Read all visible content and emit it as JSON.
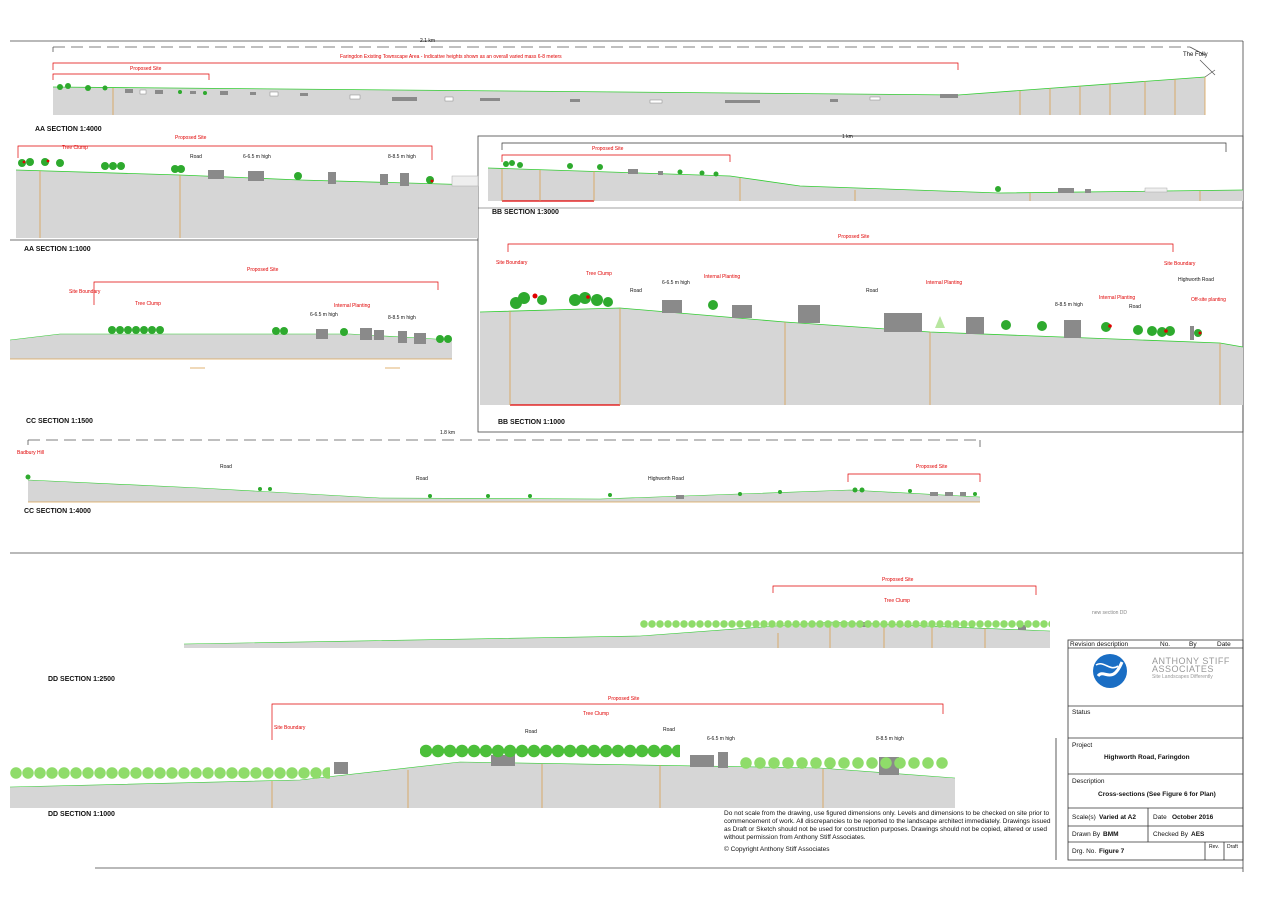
{
  "sections": {
    "aa4000": {
      "title": "AA SECTION 1:4000",
      "scale_distance": "2.1 km",
      "townscape_note": "Faringdon Existing Townscape Area - Indicative heights shown as an overall varied mass 6-8 meters",
      "proposed_site": "Proposed Site",
      "folly": "The Folly"
    },
    "aa1000": {
      "title": "AA SECTION 1:1000",
      "proposed_site": "Proposed Site",
      "tree_clump": "Tree Clump",
      "road": "Road",
      "height1": "6-6.5 m high",
      "height2": "8-8.5 m high"
    },
    "bb3000": {
      "title": "BB SECTION 1:3000",
      "scale_distance": "1 km",
      "proposed_site": "Proposed Site"
    },
    "bb1000": {
      "title": "BB SECTION 1:1000",
      "proposed_site": "Proposed Site",
      "site_boundary_left": "Site Boundary",
      "tree_clump": "Tree Clump",
      "road1": "Road",
      "height1": "6-6.5 m high",
      "internal_planting1": "Internal Planting",
      "road2": "Road",
      "internal_planting2": "Internal Planting",
      "height2": "8-8.5 m high",
      "internal_planting3": "Internal Planting",
      "road3": "Road",
      "site_boundary_right": "Site Boundary",
      "highworth_road": "Highworth Road",
      "offsite_planting": "Off-site planting"
    },
    "cc1500": {
      "title": "CC SECTION 1:1500",
      "proposed_site": "Proposed Site",
      "site_boundary": "Site Boundary",
      "tree_clump": "Tree Clump",
      "height1": "6-6.5 m high",
      "internal_planting": "Internal Planting",
      "height2": "8-8.5 m high"
    },
    "cc4000": {
      "title": "CC SECTION 1:4000",
      "scale_distance": "1.8 km",
      "badbury_hill": "Badbury Hill",
      "road1": "Road",
      "road2": "Road",
      "highworth_road": "Highworth Road",
      "proposed_site": "Proposed Site"
    },
    "dd2500": {
      "title": "DD SECTION 1:2500",
      "proposed_site": "Proposed Site",
      "tree_clump": "Tree Clump",
      "new_section": "new section DD"
    },
    "dd1000": {
      "title": "DD SECTION 1:1000",
      "proposed_site": "Proposed Site",
      "tree_clump": "Tree Clump",
      "site_boundary": "Site Boundary",
      "road1": "Road",
      "road2": "Road",
      "height1": "6-6.5 m high",
      "height2": "8-8.5 m high"
    }
  },
  "notes": {
    "disclaimer": "Do not scale from the drawing, use figured dimensions only. Levels and dimensions to be checked on site prior to commencement of work. All discrepancies to be reported to the landscape architect immediately. Drawings issued as Draft or Sketch should not be used for construction purposes. Drawings should not be copied, altered or used without permission from Anthony Stiff Associates.",
    "copyright": "©  Copyright Anthony Stiff Associates"
  },
  "title_block": {
    "revision_description": "Revision description",
    "no": "No.",
    "by": "By",
    "date": "Date",
    "company_line1": "ANTHONY STIFF",
    "company_line2": "ASSOCIATES",
    "company_tagline": "Site Landscapes Differently",
    "status_label": "Status",
    "project_label": "Project",
    "project_value": "Highworth Road, Faringdon",
    "description_label": "Description",
    "description_value": "Cross-sections (See Figure 6 for Plan)",
    "scale_label": "Scale(s)",
    "scale_value": "Varied at A2",
    "date_label": "Date",
    "date_value": "October 2016",
    "drawn_by_label": "Drawn By",
    "drawn_by_value": "BMM",
    "checked_by_label": "Checked By",
    "checked_by_value": "AES",
    "drg_no_label": "Drg. No.",
    "drg_no_value": "Figure 7",
    "rev_label": "Rev.",
    "draft_label": "Draft"
  },
  "colors": {
    "ground": "#d6d6d6",
    "ground_line": "#33cc33",
    "site_line": "#e00000",
    "tree": "#2eaa2e",
    "building": "#8a8a8a",
    "post": "#d9a050"
  }
}
